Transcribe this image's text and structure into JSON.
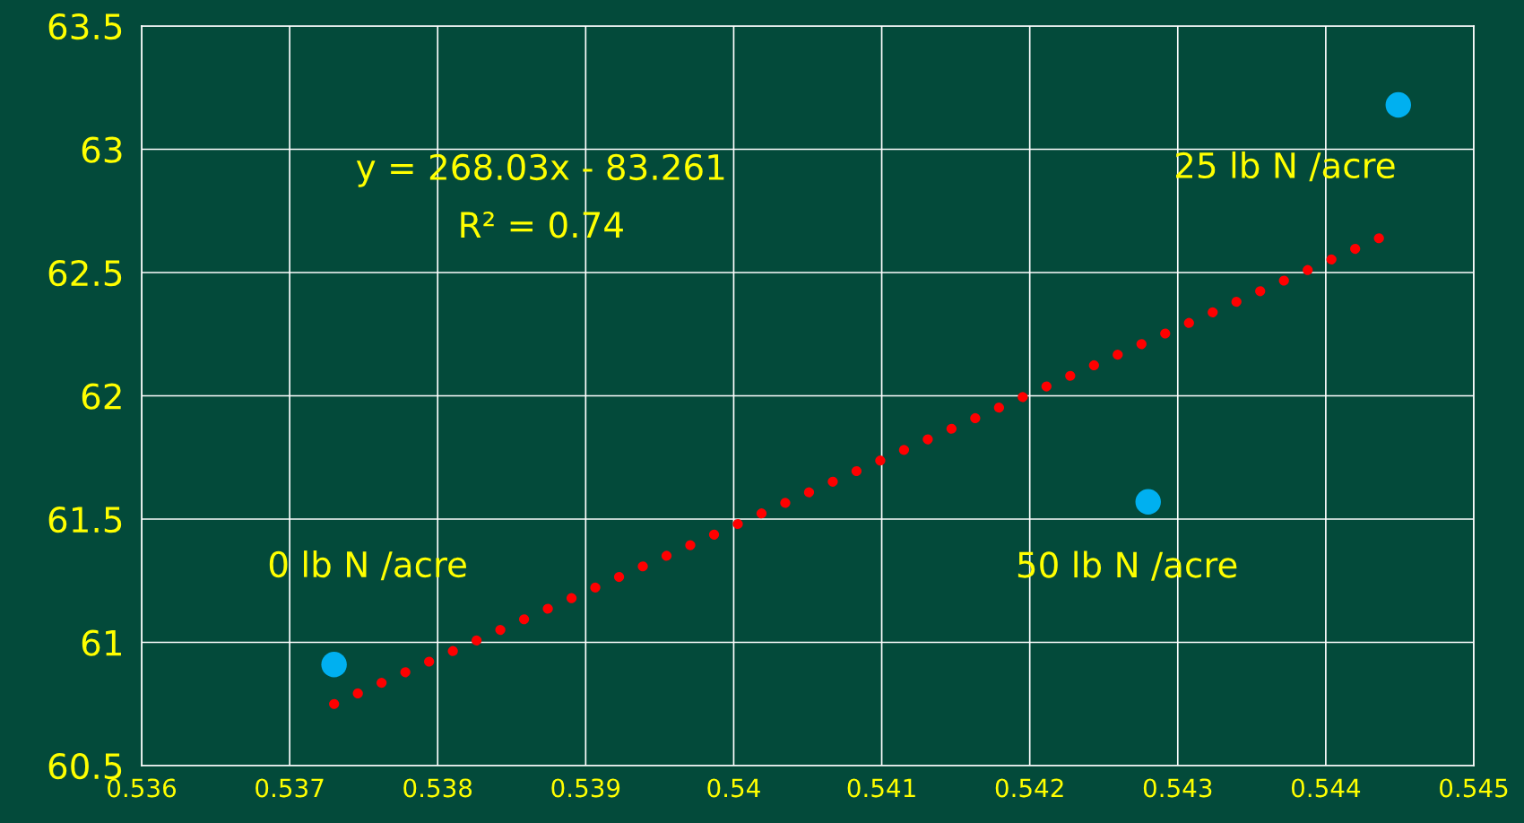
{
  "chart_data": {
    "type": "scatter",
    "xlim": [
      0.536,
      0.545
    ],
    "ylim": [
      60.5,
      63.5
    ],
    "xticks": [
      0.536,
      0.537,
      0.538,
      0.539,
      0.54,
      0.541,
      0.542,
      0.543,
      0.544,
      0.545
    ],
    "yticks": [
      60.5,
      61,
      61.5,
      62,
      62.5,
      63,
      63.5
    ],
    "grid": true,
    "series": [
      {
        "marker": "circle",
        "color": "#00b0f0",
        "x": [
          0.5373,
          0.5428,
          0.54449
        ],
        "values": [
          60.91,
          61.57,
          63.18
        ]
      },
      {
        "type": "line",
        "marker": "none",
        "color": "#ff0000",
        "line_style": "dotted",
        "x": [
          0.5373,
          0.5444
        ],
        "values": [
          60.75,
          62.65
        ]
      }
    ],
    "annotations": [
      "y = 268.03x - 83.261",
      "R² = 0.74",
      {
        "text": "0 lb N /acre",
        "x": 0.5373,
        "y": 60.91
      },
      {
        "text": "50 lb N /acre",
        "x": 0.5428,
        "y": 61.57
      },
      {
        "text": "25 lb N /acre",
        "x": 0.54449,
        "y": 63.18
      }
    ]
  }
}
